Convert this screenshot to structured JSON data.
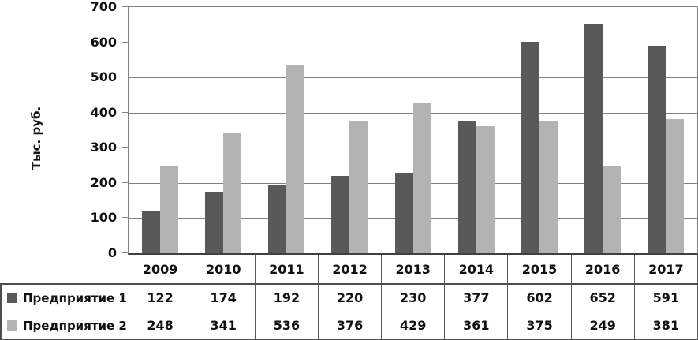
{
  "chart_data": {
    "type": "bar",
    "title": "",
    "xlabel": "",
    "ylabel": "Тыс. руб.",
    "ylim": [
      0,
      700
    ],
    "ytick_step": 100,
    "yticks": [
      "0",
      "100",
      "200",
      "300",
      "400",
      "500",
      "600",
      "700"
    ],
    "grid": true,
    "legend_position": "table-left",
    "categories": [
      "2009",
      "2010",
      "2011",
      "2012",
      "2013",
      "2014",
      "2015",
      "2016",
      "2017"
    ],
    "series": [
      {
        "name": "Предприятие 1",
        "color": "#595959",
        "values": [
          122,
          174,
          192,
          220,
          230,
          377,
          602,
          652,
          591
        ]
      },
      {
        "name": "Предприятие 2",
        "color": "#b3b3b3",
        "values": [
          248,
          341,
          536,
          376,
          429,
          361,
          375,
          249,
          381
        ]
      }
    ]
  },
  "colors": {
    "bar_dark": "#595959",
    "bar_light": "#b3b3b3",
    "gridline": "#808080",
    "axis": "#404040",
    "table_border": "#595959",
    "text": "#111111",
    "background": "#ffffff"
  }
}
